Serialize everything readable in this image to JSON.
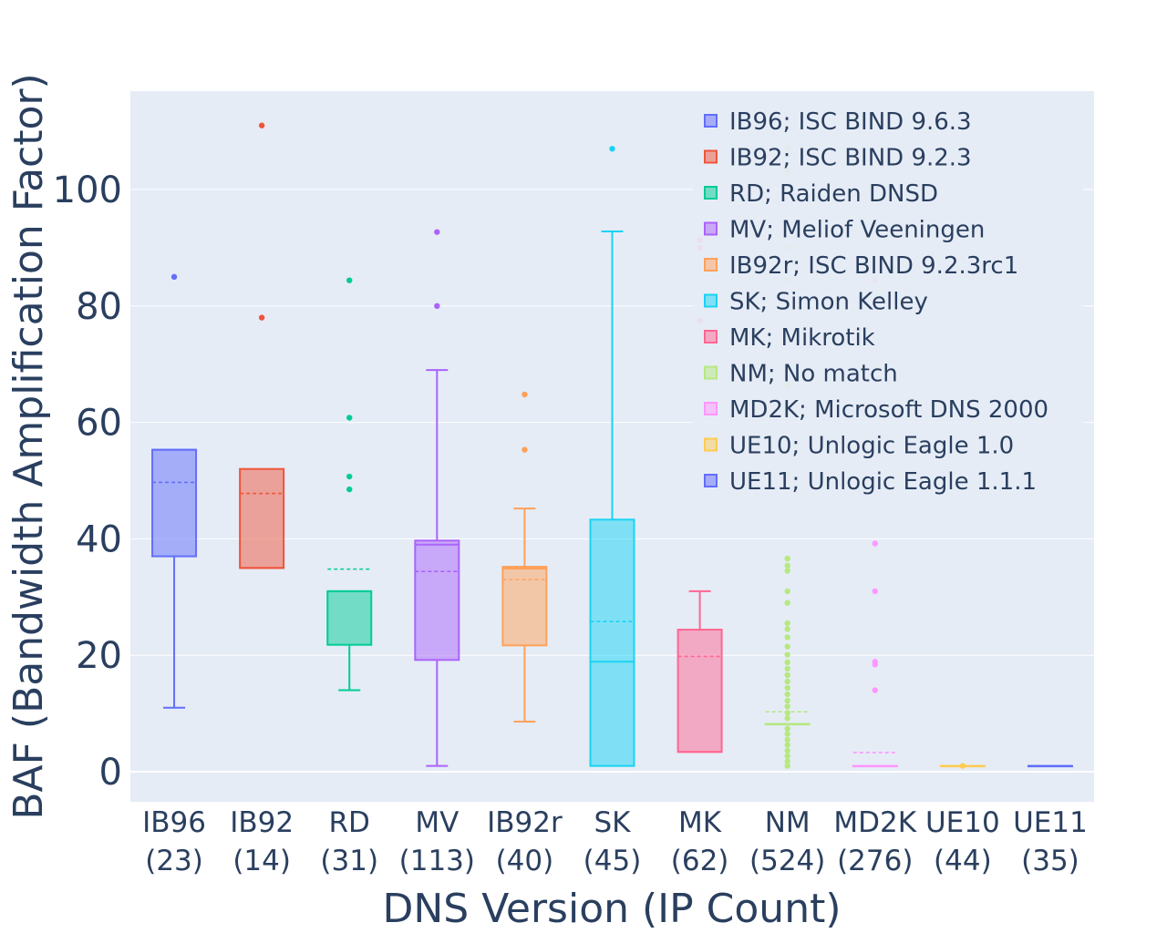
{
  "chart_data": {
    "type": "box",
    "xlabel": "DNS Version (IP Count)",
    "ylabel": "BAF (Bandwidth Amplification Factor)",
    "ylim": [
      -5,
      117
    ],
    "yticks": [
      0,
      20,
      40,
      60,
      80,
      100
    ],
    "grid": true,
    "legend_position": "top-right",
    "background": "#e5ecf6",
    "series": [
      {
        "code": "IB96",
        "count": "(23)",
        "legend": "IB96; ISC BIND 9.6.3",
        "color": "#636efa",
        "min": 11,
        "q1": 37,
        "median": 55.3,
        "q3": 55.3,
        "max": 55.3,
        "mean": 49.7,
        "outliers": [
          85
        ]
      },
      {
        "code": "IB92",
        "count": "(14)",
        "legend": "IB92; ISC BIND 9.2.3",
        "color": "#ef553b",
        "min": 35,
        "q1": 35,
        "median": 35,
        "q3": 52,
        "max": 52,
        "mean": 47.8,
        "outliers": [
          78,
          111
        ]
      },
      {
        "code": "RD",
        "count": "(31)",
        "legend": "RD; Raiden DNSD",
        "color": "#00cc96",
        "min": 14,
        "q1": 21.8,
        "median": 31,
        "q3": 31,
        "max": 31,
        "mean": 34.8,
        "outliers": [
          48.5,
          50.7,
          60.8,
          84.4
        ]
      },
      {
        "code": "MV",
        "count": "(113)",
        "legend": "MV; Meliof Veeningen",
        "color": "#ab63fa",
        "min": 1,
        "q1": 19.2,
        "median": 39,
        "q3": 39.7,
        "max": 69,
        "mean": 34.4,
        "outliers": [
          80,
          92.7
        ]
      },
      {
        "code": "IB92r",
        "count": "(40)",
        "legend": "IB92r; ISC BIND 9.2.3rc1",
        "color": "#ffa15a",
        "min": 8.6,
        "q1": 21.7,
        "median": 34.9,
        "q3": 35.2,
        "max": 45.2,
        "mean": 33,
        "outliers": [
          55.3,
          64.8
        ]
      },
      {
        "code": "SK",
        "count": "(45)",
        "legend": "SK; Simon Kelley",
        "color": "#19d3f3",
        "min": 1,
        "q1": 1,
        "median": 18.9,
        "q3": 43.3,
        "max": 92.8,
        "mean": 25.8,
        "outliers": [
          107
        ]
      },
      {
        "code": "MK",
        "count": "(62)",
        "legend": "MK; Mikrotik",
        "color": "#ff6692",
        "min": 3.4,
        "q1": 3.4,
        "median": 3.4,
        "q3": 24.4,
        "max": 31,
        "mean": 19.8,
        "outliers": [
          77.5,
          90,
          91.3
        ]
      },
      {
        "code": "NM",
        "count": "(524)",
        "legend": "NM; No match",
        "color": "#b6e880",
        "min": 8.2,
        "q1": 8.2,
        "median": 8.2,
        "q3": 8.2,
        "max": 8.2,
        "mean": 10.3,
        "outliers": [
          1,
          1.8,
          2.7,
          3.6,
          4.6,
          5.5,
          6.5,
          7.4,
          9.2,
          10.1,
          11.2,
          12.2,
          13.3,
          14.4,
          15.5,
          16.6,
          17.7,
          18.8,
          20.1,
          21.5,
          23.1,
          24.5,
          25.5,
          29,
          31,
          34.5,
          35.4,
          36.6,
          51,
          66.5,
          84.5,
          90,
          103,
          107
        ]
      },
      {
        "code": "MD2K",
        "count": "(276)",
        "legend": "MD2K; Microsoft DNS 2000",
        "color": "#ff97ff",
        "min": 1,
        "q1": 1,
        "median": 1,
        "q3": 1,
        "max": 1,
        "mean": 3.3,
        "outliers": [
          14,
          18.4,
          18.9,
          31,
          39.2,
          81,
          84.4
        ]
      },
      {
        "code": "UE10",
        "count": "(44)",
        "legend": "UE10; Unlogic Eagle 1.0",
        "color": "#fecb52",
        "min": 1,
        "q1": 1,
        "median": 1,
        "q3": 1,
        "max": 1,
        "mean": 1,
        "outliers": [
          1
        ]
      },
      {
        "code": "UE11",
        "count": "(35)",
        "legend": "UE11; Unlogic Eagle 1.1.1",
        "color": "#636efa",
        "min": 1,
        "q1": 1,
        "median": 1,
        "q3": 1,
        "max": 1,
        "mean": 1,
        "outliers": []
      }
    ]
  }
}
